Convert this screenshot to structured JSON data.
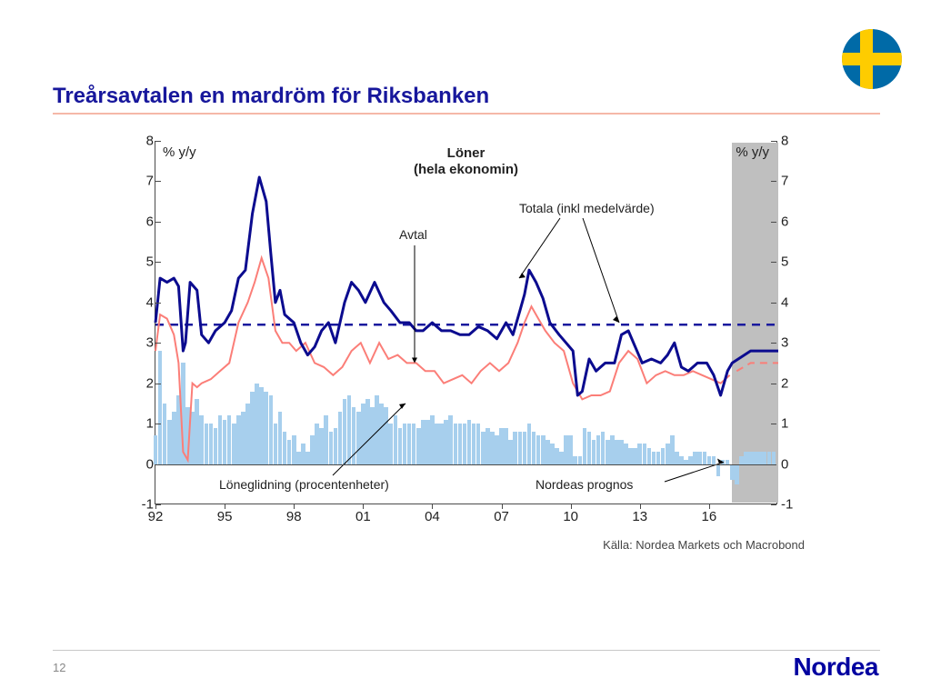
{
  "page": {
    "number": "12",
    "brand": "Nordea"
  },
  "title": "Treårsavtalen en mardröm för Riksbanken",
  "flag": {
    "bg": "#006aa7",
    "cross": "#fecc00"
  },
  "chart": {
    "type": "line+bar",
    "ylim": [
      -1,
      8
    ],
    "yticks": [
      -1,
      0,
      1,
      2,
      3,
      4,
      5,
      6,
      7,
      8
    ],
    "y_axis_label_left": "% y/y",
    "y_axis_label_right": "% y/y",
    "x_years": [
      92,
      95,
      98,
      101,
      104,
      107,
      110,
      113,
      116
    ],
    "x_labels": [
      "92",
      "95",
      "98",
      "01",
      "04",
      "07",
      "10",
      "13",
      "16"
    ],
    "x_range": [
      92,
      119
    ],
    "forecast_start": 117,
    "forecast_end": 119,
    "mean_line_y": 3.45,
    "title_line1": "Löner",
    "title_line2": "(hela ekonomin)",
    "colors": {
      "total_line": "#0b0b8f",
      "avtal_line": "#fb7e78",
      "mean_dash": "#1a1a9e",
      "bars": "#a7cfed",
      "plot_border": "#4a4a4a"
    },
    "line_widths": {
      "total": 3,
      "avtal": 2,
      "mean": 2.5
    },
    "annotations": {
      "avtal": "Avtal",
      "totala": "Totala (inkl medelvärde)",
      "loneglidning": "Löneglidning (procentenheter)",
      "prognos": "Nordeas prognos"
    },
    "source": "Källa: Nordea Markets och Macrobond",
    "series_total": [
      [
        92,
        3.5
      ],
      [
        92.2,
        4.6
      ],
      [
        92.5,
        4.5
      ],
      [
        92.8,
        4.6
      ],
      [
        93,
        4.4
      ],
      [
        93.2,
        2.8
      ],
      [
        93.3,
        3.0
      ],
      [
        93.5,
        4.5
      ],
      [
        93.8,
        4.3
      ],
      [
        94,
        3.2
      ],
      [
        94.3,
        3.0
      ],
      [
        94.6,
        3.3
      ],
      [
        95,
        3.5
      ],
      [
        95.3,
        3.8
      ],
      [
        95.6,
        4.6
      ],
      [
        95.9,
        4.8
      ],
      [
        96.2,
        6.2
      ],
      [
        96.5,
        7.1
      ],
      [
        96.8,
        6.5
      ],
      [
        97,
        5.2
      ],
      [
        97.2,
        4.0
      ],
      [
        97.4,
        4.3
      ],
      [
        97.6,
        3.7
      ],
      [
        98,
        3.5
      ],
      [
        98.3,
        3.0
      ],
      [
        98.6,
        2.7
      ],
      [
        98.9,
        2.9
      ],
      [
        99.2,
        3.3
      ],
      [
        99.5,
        3.5
      ],
      [
        99.8,
        3.0
      ],
      [
        100.2,
        4.0
      ],
      [
        100.5,
        4.5
      ],
      [
        100.8,
        4.3
      ],
      [
        101.1,
        4.0
      ],
      [
        101.5,
        4.5
      ],
      [
        101.9,
        4.0
      ],
      [
        102.2,
        3.8
      ],
      [
        102.6,
        3.5
      ],
      [
        103,
        3.5
      ],
      [
        103.3,
        3.3
      ],
      [
        103.6,
        3.3
      ],
      [
        104,
        3.5
      ],
      [
        104.4,
        3.3
      ],
      [
        104.8,
        3.3
      ],
      [
        105.2,
        3.2
      ],
      [
        105.6,
        3.2
      ],
      [
        106,
        3.4
      ],
      [
        106.4,
        3.3
      ],
      [
        106.8,
        3.1
      ],
      [
        107.2,
        3.5
      ],
      [
        107.5,
        3.2
      ],
      [
        107.8,
        3.8
      ],
      [
        108,
        4.2
      ],
      [
        108.2,
        4.8
      ],
      [
        108.5,
        4.5
      ],
      [
        108.8,
        4.1
      ],
      [
        109.1,
        3.5
      ],
      [
        109.5,
        3.2
      ],
      [
        109.8,
        3.0
      ],
      [
        110.1,
        2.8
      ],
      [
        110.3,
        1.7
      ],
      [
        110.5,
        1.8
      ],
      [
        110.8,
        2.6
      ],
      [
        111.1,
        2.3
      ],
      [
        111.5,
        2.5
      ],
      [
        111.9,
        2.5
      ],
      [
        112.2,
        3.2
      ],
      [
        112.5,
        3.3
      ],
      [
        112.8,
        2.9
      ],
      [
        113.1,
        2.5
      ],
      [
        113.5,
        2.6
      ],
      [
        113.9,
        2.5
      ],
      [
        114.2,
        2.7
      ],
      [
        114.5,
        3.0
      ],
      [
        114.8,
        2.4
      ],
      [
        115.1,
        2.3
      ],
      [
        115.5,
        2.5
      ],
      [
        115.9,
        2.5
      ],
      [
        116.2,
        2.2
      ],
      [
        116.5,
        1.7
      ],
      [
        116.8,
        2.3
      ],
      [
        117,
        2.5
      ],
      [
        117.8,
        2.8
      ],
      [
        119,
        2.8
      ]
    ],
    "series_avtal": [
      [
        92,
        2.8
      ],
      [
        92.2,
        3.7
      ],
      [
        92.5,
        3.6
      ],
      [
        92.8,
        3.2
      ],
      [
        93,
        2.5
      ],
      [
        93.2,
        0.3
      ],
      [
        93.4,
        0.1
      ],
      [
        93.6,
        2.0
      ],
      [
        93.8,
        1.9
      ],
      [
        94,
        2.0
      ],
      [
        94.4,
        2.1
      ],
      [
        94.8,
        2.3
      ],
      [
        95.2,
        2.5
      ],
      [
        95.6,
        3.5
      ],
      [
        96,
        4.0
      ],
      [
        96.3,
        4.5
      ],
      [
        96.6,
        5.1
      ],
      [
        96.9,
        4.6
      ],
      [
        97.2,
        3.3
      ],
      [
        97.5,
        3.0
      ],
      [
        97.8,
        3.0
      ],
      [
        98.1,
        2.8
      ],
      [
        98.5,
        3.0
      ],
      [
        98.9,
        2.5
      ],
      [
        99.3,
        2.4
      ],
      [
        99.7,
        2.2
      ],
      [
        100.1,
        2.4
      ],
      [
        100.5,
        2.8
      ],
      [
        100.9,
        3.0
      ],
      [
        101.3,
        2.5
      ],
      [
        101.7,
        3.0
      ],
      [
        102.1,
        2.6
      ],
      [
        102.5,
        2.7
      ],
      [
        102.9,
        2.5
      ],
      [
        103.3,
        2.5
      ],
      [
        103.7,
        2.3
      ],
      [
        104.1,
        2.3
      ],
      [
        104.5,
        2.0
      ],
      [
        104.9,
        2.1
      ],
      [
        105.3,
        2.2
      ],
      [
        105.7,
        2.0
      ],
      [
        106.1,
        2.3
      ],
      [
        106.5,
        2.5
      ],
      [
        106.9,
        2.3
      ],
      [
        107.3,
        2.5
      ],
      [
        107.7,
        3.0
      ],
      [
        108,
        3.5
      ],
      [
        108.3,
        3.9
      ],
      [
        108.6,
        3.6
      ],
      [
        108.9,
        3.3
      ],
      [
        109.3,
        3.0
      ],
      [
        109.7,
        2.8
      ],
      [
        110.1,
        2.0
      ],
      [
        110.5,
        1.6
      ],
      [
        110.9,
        1.7
      ],
      [
        111.3,
        1.7
      ],
      [
        111.7,
        1.8
      ],
      [
        112.1,
        2.5
      ],
      [
        112.5,
        2.8
      ],
      [
        112.9,
        2.6
      ],
      [
        113.3,
        2.0
      ],
      [
        113.7,
        2.2
      ],
      [
        114.1,
        2.3
      ],
      [
        114.5,
        2.2
      ],
      [
        114.9,
        2.2
      ],
      [
        115.3,
        2.3
      ],
      [
        115.7,
        2.2
      ],
      [
        116.1,
        2.1
      ],
      [
        116.5,
        2.0
      ],
      [
        116.9,
        2.2
      ],
      [
        117.2,
        2.3
      ],
      [
        117.8,
        2.5
      ],
      [
        119,
        2.5
      ]
    ],
    "bars_wagedrift": [
      [
        92,
        0.7
      ],
      [
        92.2,
        2.8
      ],
      [
        92.4,
        1.5
      ],
      [
        92.6,
        1.1
      ],
      [
        92.8,
        1.3
      ],
      [
        93,
        1.7
      ],
      [
        93.2,
        2.5
      ],
      [
        93.4,
        1.4
      ],
      [
        93.6,
        1.3
      ],
      [
        93.8,
        1.6
      ],
      [
        94,
        1.2
      ],
      [
        94.2,
        1.0
      ],
      [
        94.4,
        1.0
      ],
      [
        94.6,
        0.9
      ],
      [
        94.8,
        1.2
      ],
      [
        95,
        1.1
      ],
      [
        95.2,
        1.2
      ],
      [
        95.4,
        1.0
      ],
      [
        95.6,
        1.2
      ],
      [
        95.8,
        1.3
      ],
      [
        96,
        1.5
      ],
      [
        96.2,
        1.8
      ],
      [
        96.4,
        2.0
      ],
      [
        96.6,
        1.9
      ],
      [
        96.8,
        1.8
      ],
      [
        97,
        1.7
      ],
      [
        97.2,
        1.0
      ],
      [
        97.4,
        1.3
      ],
      [
        97.6,
        0.8
      ],
      [
        97.8,
        0.6
      ],
      [
        98,
        0.7
      ],
      [
        98.2,
        0.3
      ],
      [
        98.4,
        0.5
      ],
      [
        98.6,
        0.3
      ],
      [
        98.8,
        0.7
      ],
      [
        99,
        1.0
      ],
      [
        99.2,
        0.9
      ],
      [
        99.4,
        1.2
      ],
      [
        99.6,
        0.8
      ],
      [
        99.8,
        0.9
      ],
      [
        100,
        1.3
      ],
      [
        100.2,
        1.6
      ],
      [
        100.4,
        1.7
      ],
      [
        100.6,
        1.4
      ],
      [
        100.8,
        1.3
      ],
      [
        101,
        1.5
      ],
      [
        101.2,
        1.6
      ],
      [
        101.4,
        1.4
      ],
      [
        101.6,
        1.7
      ],
      [
        101.8,
        1.5
      ],
      [
        102,
        1.4
      ],
      [
        102.2,
        1.0
      ],
      [
        102.4,
        1.2
      ],
      [
        102.6,
        0.9
      ],
      [
        102.8,
        1.0
      ],
      [
        103,
        1.0
      ],
      [
        103.2,
        1.0
      ],
      [
        103.4,
        0.9
      ],
      [
        103.6,
        1.1
      ],
      [
        103.8,
        1.1
      ],
      [
        104,
        1.2
      ],
      [
        104.2,
        1.0
      ],
      [
        104.4,
        1.0
      ],
      [
        104.6,
        1.1
      ],
      [
        104.8,
        1.2
      ],
      [
        105,
        1.0
      ],
      [
        105.2,
        1.0
      ],
      [
        105.4,
        1.0
      ],
      [
        105.6,
        1.1
      ],
      [
        105.8,
        1.0
      ],
      [
        106,
        1.0
      ],
      [
        106.2,
        0.8
      ],
      [
        106.4,
        0.9
      ],
      [
        106.6,
        0.8
      ],
      [
        106.8,
        0.7
      ],
      [
        107,
        0.9
      ],
      [
        107.2,
        0.9
      ],
      [
        107.4,
        0.6
      ],
      [
        107.6,
        0.8
      ],
      [
        107.8,
        0.8
      ],
      [
        108,
        0.8
      ],
      [
        108.2,
        1.0
      ],
      [
        108.4,
        0.8
      ],
      [
        108.6,
        0.7
      ],
      [
        108.8,
        0.7
      ],
      [
        109,
        0.6
      ],
      [
        109.2,
        0.5
      ],
      [
        109.4,
        0.4
      ],
      [
        109.6,
        0.3
      ],
      [
        109.8,
        0.7
      ],
      [
        110,
        0.7
      ],
      [
        110.2,
        0.2
      ],
      [
        110.4,
        0.2
      ],
      [
        110.6,
        0.9
      ],
      [
        110.8,
        0.8
      ],
      [
        111,
        0.6
      ],
      [
        111.2,
        0.7
      ],
      [
        111.4,
        0.8
      ],
      [
        111.6,
        0.6
      ],
      [
        111.8,
        0.7
      ],
      [
        112,
        0.6
      ],
      [
        112.2,
        0.6
      ],
      [
        112.4,
        0.5
      ],
      [
        112.6,
        0.4
      ],
      [
        112.8,
        0.4
      ],
      [
        113,
        0.5
      ],
      [
        113.2,
        0.5
      ],
      [
        113.4,
        0.4
      ],
      [
        113.6,
        0.3
      ],
      [
        113.8,
        0.3
      ],
      [
        114,
        0.4
      ],
      [
        114.2,
        0.5
      ],
      [
        114.4,
        0.7
      ],
      [
        114.6,
        0.3
      ],
      [
        114.8,
        0.2
      ],
      [
        115,
        0.1
      ],
      [
        115.2,
        0.2
      ],
      [
        115.4,
        0.3
      ],
      [
        115.6,
        0.3
      ],
      [
        115.8,
        0.3
      ],
      [
        116,
        0.2
      ],
      [
        116.2,
        0.2
      ],
      [
        116.4,
        -0.3
      ],
      [
        116.6,
        0.1
      ],
      [
        116.8,
        0.1
      ],
      [
        117,
        -0.4
      ],
      [
        117.2,
        -0.5
      ],
      [
        117.4,
        0.2
      ],
      [
        117.6,
        0.3
      ],
      [
        117.8,
        0.3
      ],
      [
        118,
        0.3
      ],
      [
        118.2,
        0.3
      ],
      [
        118.4,
        0.3
      ],
      [
        118.6,
        0.3
      ],
      [
        118.8,
        0.3
      ]
    ]
  }
}
